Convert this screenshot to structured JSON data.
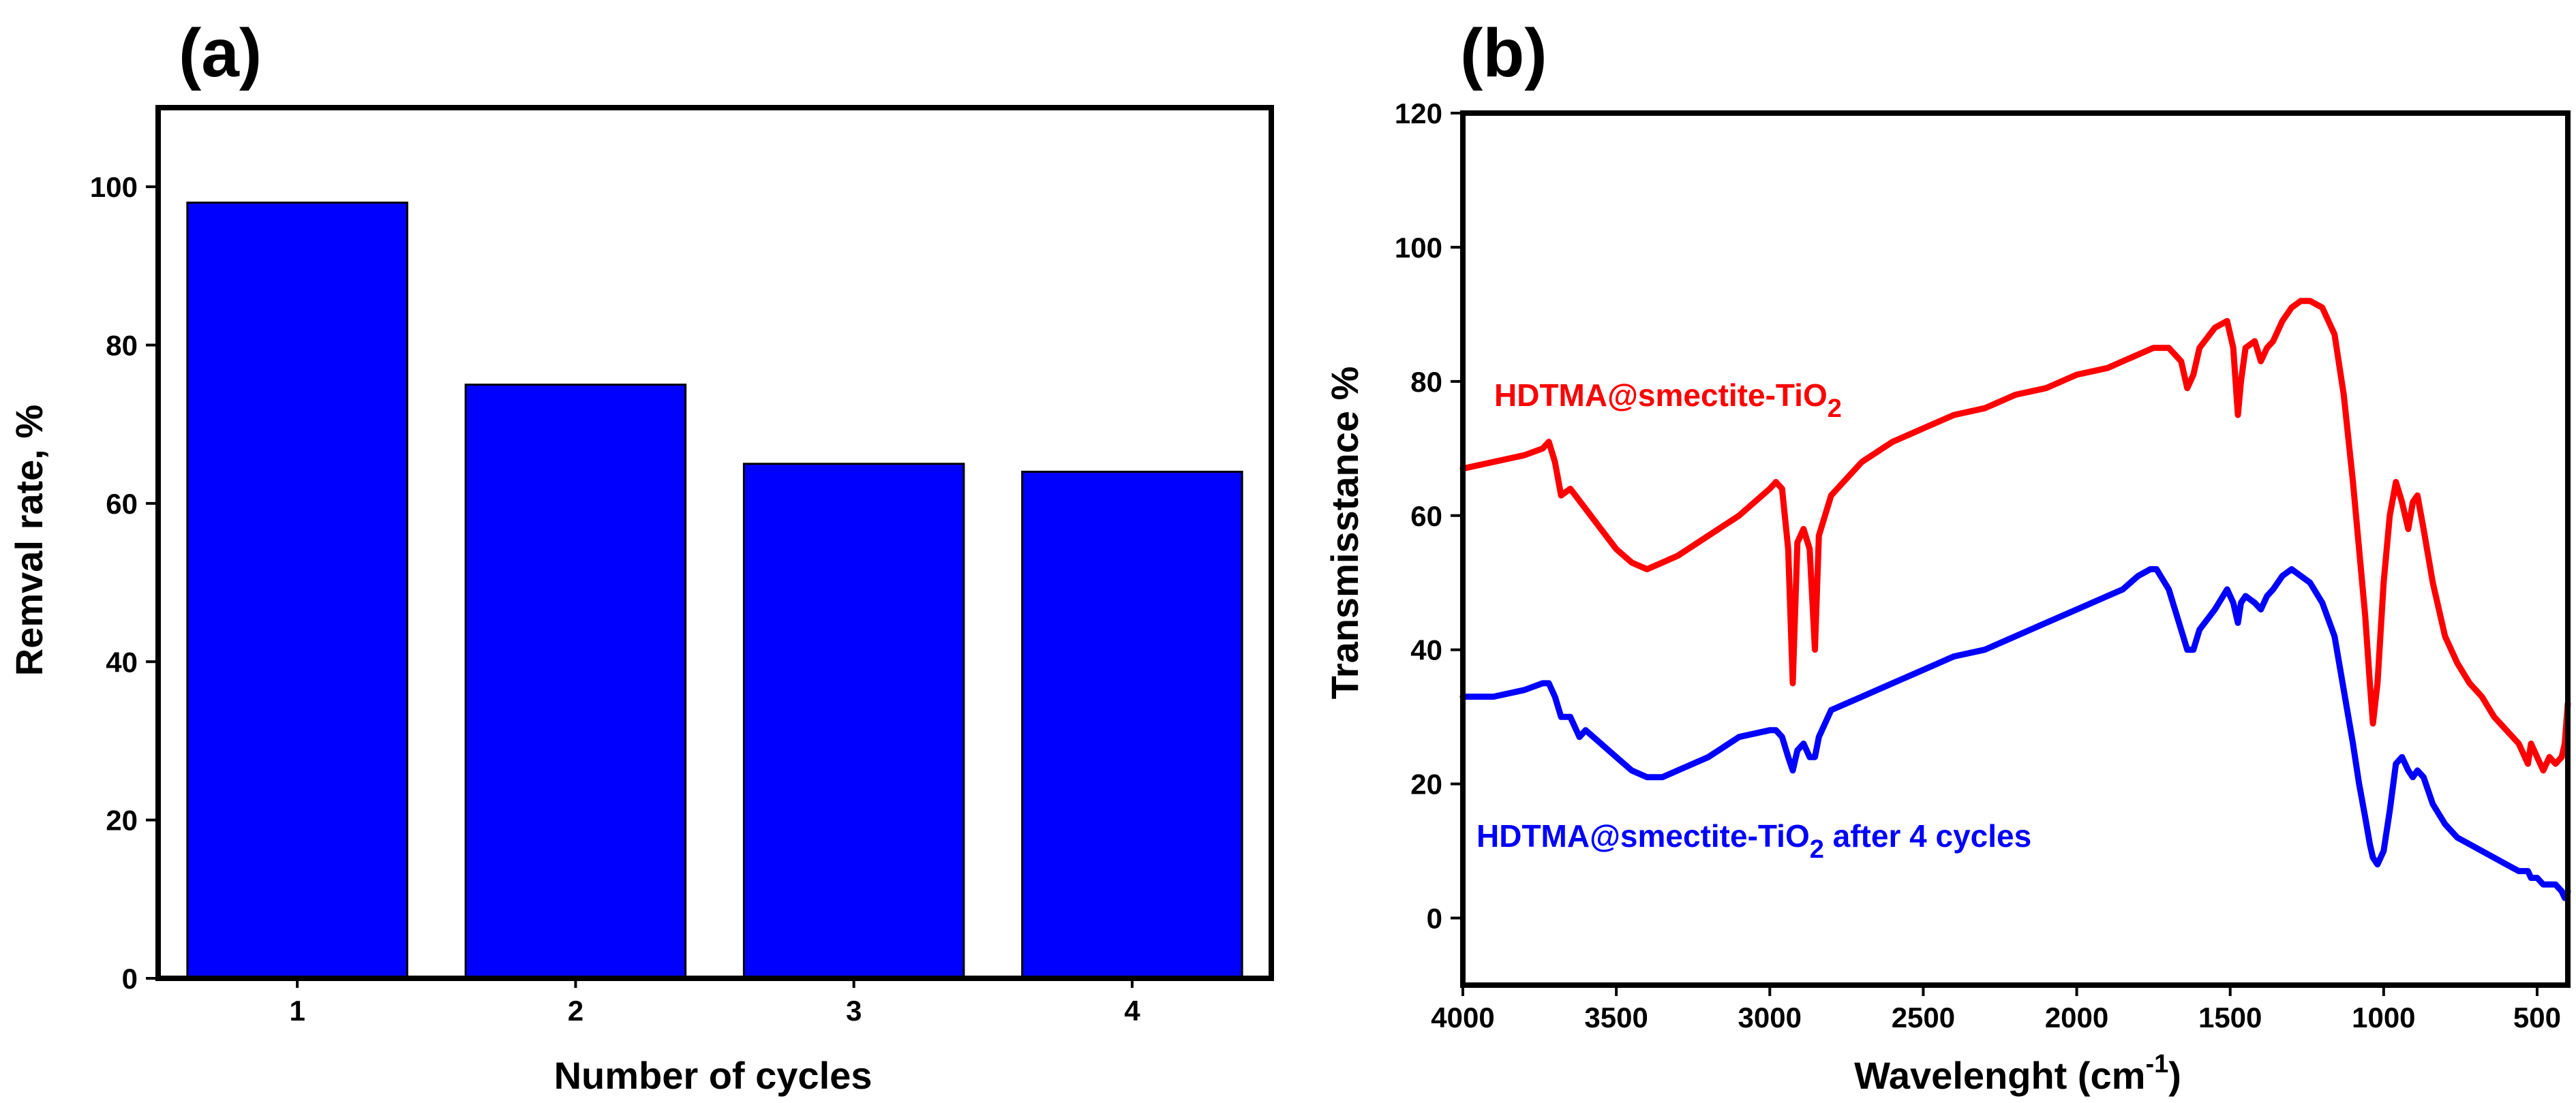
{
  "panels": {
    "a": {
      "label": "(a)"
    },
    "b": {
      "label": "(b)"
    }
  },
  "chart_data": [
    {
      "type": "bar",
      "panel": "(a)",
      "title": "",
      "categories": [
        "1",
        "2",
        "3",
        "4"
      ],
      "values": [
        98,
        75,
        65,
        64
      ],
      "xlabel": "Number of cycles",
      "ylabel": "Remval rate, %",
      "ylim": [
        0,
        110
      ],
      "yticks": [
        0,
        20,
        40,
        60,
        80,
        100
      ],
      "grid": false,
      "bar_color": "#0000ff"
    },
    {
      "type": "line",
      "panel": "(b)",
      "title": "",
      "xlabel": "Wavelenght (cm",
      "xlabel_sup": "-1",
      "xlabel_close": ")",
      "ylabel": "Transmisstance %",
      "xlim": [
        4000,
        400
      ],
      "ylim": [
        -10,
        120
      ],
      "xticks": [
        4000,
        3500,
        3000,
        2500,
        2000,
        1500,
        1000,
        500
      ],
      "yticks": [
        0,
        20,
        40,
        60,
        80,
        100,
        120
      ],
      "grid": false,
      "series": [
        {
          "name": "HDTMA@smectite-TiO2",
          "label_main": "HDTMA@smectite-TiO",
          "label_sub": "2",
          "label_suffix": "",
          "color": "#ff0000",
          "x": [
            4000,
            3900,
            3800,
            3740,
            3720,
            3700,
            3680,
            3650,
            3600,
            3550,
            3500,
            3450,
            3400,
            3350,
            3300,
            3200,
            3100,
            3000,
            2980,
            2960,
            2940,
            2925,
            2910,
            2890,
            2870,
            2853,
            2840,
            2800,
            2700,
            2600,
            2500,
            2400,
            2300,
            2200,
            2100,
            2000,
            1900,
            1850,
            1800,
            1750,
            1700,
            1660,
            1640,
            1620,
            1600,
            1550,
            1510,
            1490,
            1475,
            1465,
            1450,
            1420,
            1400,
            1380,
            1360,
            1330,
            1300,
            1270,
            1240,
            1200,
            1160,
            1130,
            1100,
            1080,
            1060,
            1045,
            1035,
            1020,
            1000,
            980,
            960,
            940,
            920,
            905,
            890,
            870,
            840,
            800,
            760,
            720,
            680,
            640,
            600,
            560,
            530,
            520,
            500,
            480,
            460,
            440,
            420,
            410,
            400
          ],
          "y": [
            67,
            68,
            69,
            70,
            71,
            68,
            63,
            64,
            61,
            58,
            55,
            53,
            52,
            53,
            54,
            57,
            60,
            64,
            65,
            64,
            55,
            35,
            56,
            58,
            55,
            40,
            57,
            63,
            68,
            71,
            73,
            75,
            76,
            78,
            79,
            81,
            82,
            83,
            84,
            85,
            85,
            83,
            79,
            81,
            85,
            88,
            89,
            85,
            75,
            80,
            85,
            86,
            83,
            85,
            86,
            89,
            91,
            92,
            92,
            91,
            87,
            78,
            65,
            55,
            45,
            35,
            29,
            35,
            50,
            60,
            65,
            62,
            58,
            62,
            63,
            58,
            50,
            42,
            38,
            35,
            33,
            30,
            28,
            26,
            23,
            26,
            24,
            22,
            24,
            23,
            24,
            26,
            32
          ]
        },
        {
          "name": "HDTMA@smectite-TiO2 after 4 cycles",
          "label_main": "HDTMA@smectite-TiO",
          "label_sub": "2",
          "label_suffix": " after 4 cycles",
          "color": "#0000ff",
          "x": [
            4000,
            3900,
            3800,
            3740,
            3720,
            3700,
            3680,
            3650,
            3620,
            3600,
            3550,
            3500,
            3450,
            3400,
            3350,
            3300,
            3200,
            3100,
            3000,
            2980,
            2960,
            2940,
            2925,
            2910,
            2890,
            2870,
            2853,
            2840,
            2800,
            2700,
            2600,
            2500,
            2400,
            2300,
            2200,
            2100,
            2000,
            1900,
            1850,
            1800,
            1760,
            1740,
            1700,
            1660,
            1640,
            1620,
            1600,
            1550,
            1510,
            1490,
            1475,
            1465,
            1450,
            1420,
            1400,
            1380,
            1360,
            1330,
            1300,
            1270,
            1240,
            1200,
            1160,
            1130,
            1100,
            1080,
            1060,
            1045,
            1035,
            1020,
            1000,
            980,
            960,
            940,
            920,
            905,
            890,
            870,
            840,
            800,
            760,
            720,
            680,
            640,
            600,
            560,
            530,
            520,
            500,
            480,
            460,
            440,
            420,
            410,
            400
          ],
          "y": [
            33,
            33,
            34,
            35,
            35,
            33,
            30,
            30,
            27,
            28,
            26,
            24,
            22,
            21,
            21,
            22,
            24,
            27,
            28,
            28,
            27,
            24,
            22,
            25,
            26,
            24,
            24,
            27,
            31,
            33,
            35,
            37,
            39,
            40,
            42,
            44,
            46,
            48,
            49,
            51,
            52,
            52,
            49,
            43,
            40,
            40,
            43,
            46,
            49,
            47,
            44,
            47,
            48,
            47,
            46,
            48,
            49,
            51,
            52,
            51,
            50,
            47,
            42,
            34,
            26,
            20,
            15,
            11,
            9,
            8,
            10,
            16,
            23,
            24,
            22,
            21,
            22,
            21,
            17,
            14,
            12,
            11,
            10,
            9,
            8,
            7,
            7,
            6,
            6,
            5,
            5,
            5,
            4,
            3,
            4
          ]
        }
      ]
    }
  ]
}
